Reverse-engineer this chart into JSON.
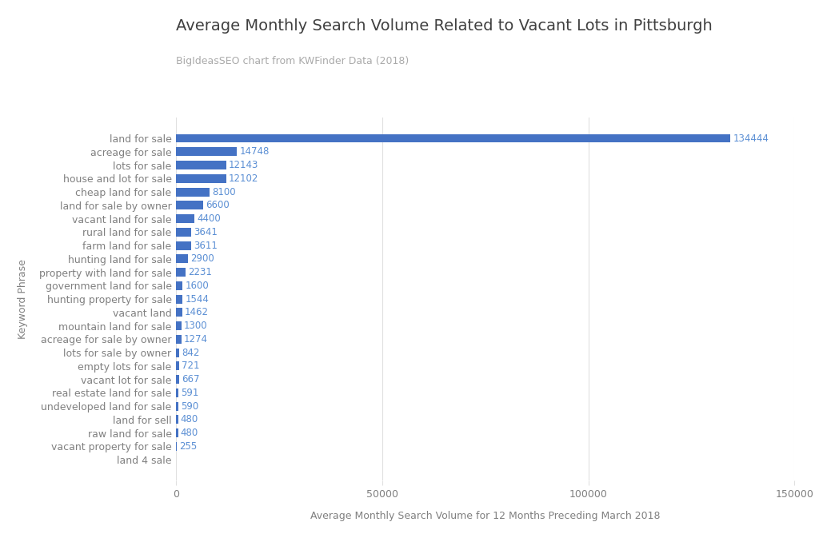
{
  "title": "Average Monthly Search Volume Related to Vacant Lots in Pittsburgh",
  "subtitle": "BigIdeasSEO chart from KWFinder Data (2018)",
  "xlabel": "Average Monthly Search Volume for 12 Months Preceding March 2018",
  "ylabel": "Keyword Phrase",
  "categories": [
    "land for sale",
    "acreage for sale",
    "lots for sale",
    "house and lot for sale",
    "cheap land for sale",
    "land for sale by owner",
    "vacant land for sale",
    "rural land for sale",
    "farm land for sale",
    "hunting land for sale",
    "property with land for sale",
    "government land for sale",
    "hunting property for sale",
    "vacant land",
    "mountain land for sale",
    "acreage for sale by owner",
    "lots for sale by owner",
    "empty lots for sale",
    "vacant lot for sale",
    "real estate land for sale",
    "undeveloped land for sale",
    "land for sell",
    "raw land for sale",
    "vacant property for sale",
    "land 4 sale"
  ],
  "values": [
    134444,
    14748,
    12143,
    12102,
    8100,
    6600,
    4400,
    3641,
    3611,
    2900,
    2231,
    1600,
    1544,
    1462,
    1300,
    1274,
    842,
    721,
    667,
    591,
    590,
    480,
    480,
    255,
    0
  ],
  "bar_color": "#4472c4",
  "label_color": "#5b8fd4",
  "title_color": "#404040",
  "subtitle_color": "#aaaaaa",
  "ylabel_color": "#808080",
  "xlabel_color": "#808080",
  "tick_label_color": "#808080",
  "background_color": "#ffffff",
  "gridline_color": "#e0e0e0",
  "xlim": [
    0,
    150000
  ],
  "xticks": [
    0,
    50000,
    100000,
    150000
  ]
}
